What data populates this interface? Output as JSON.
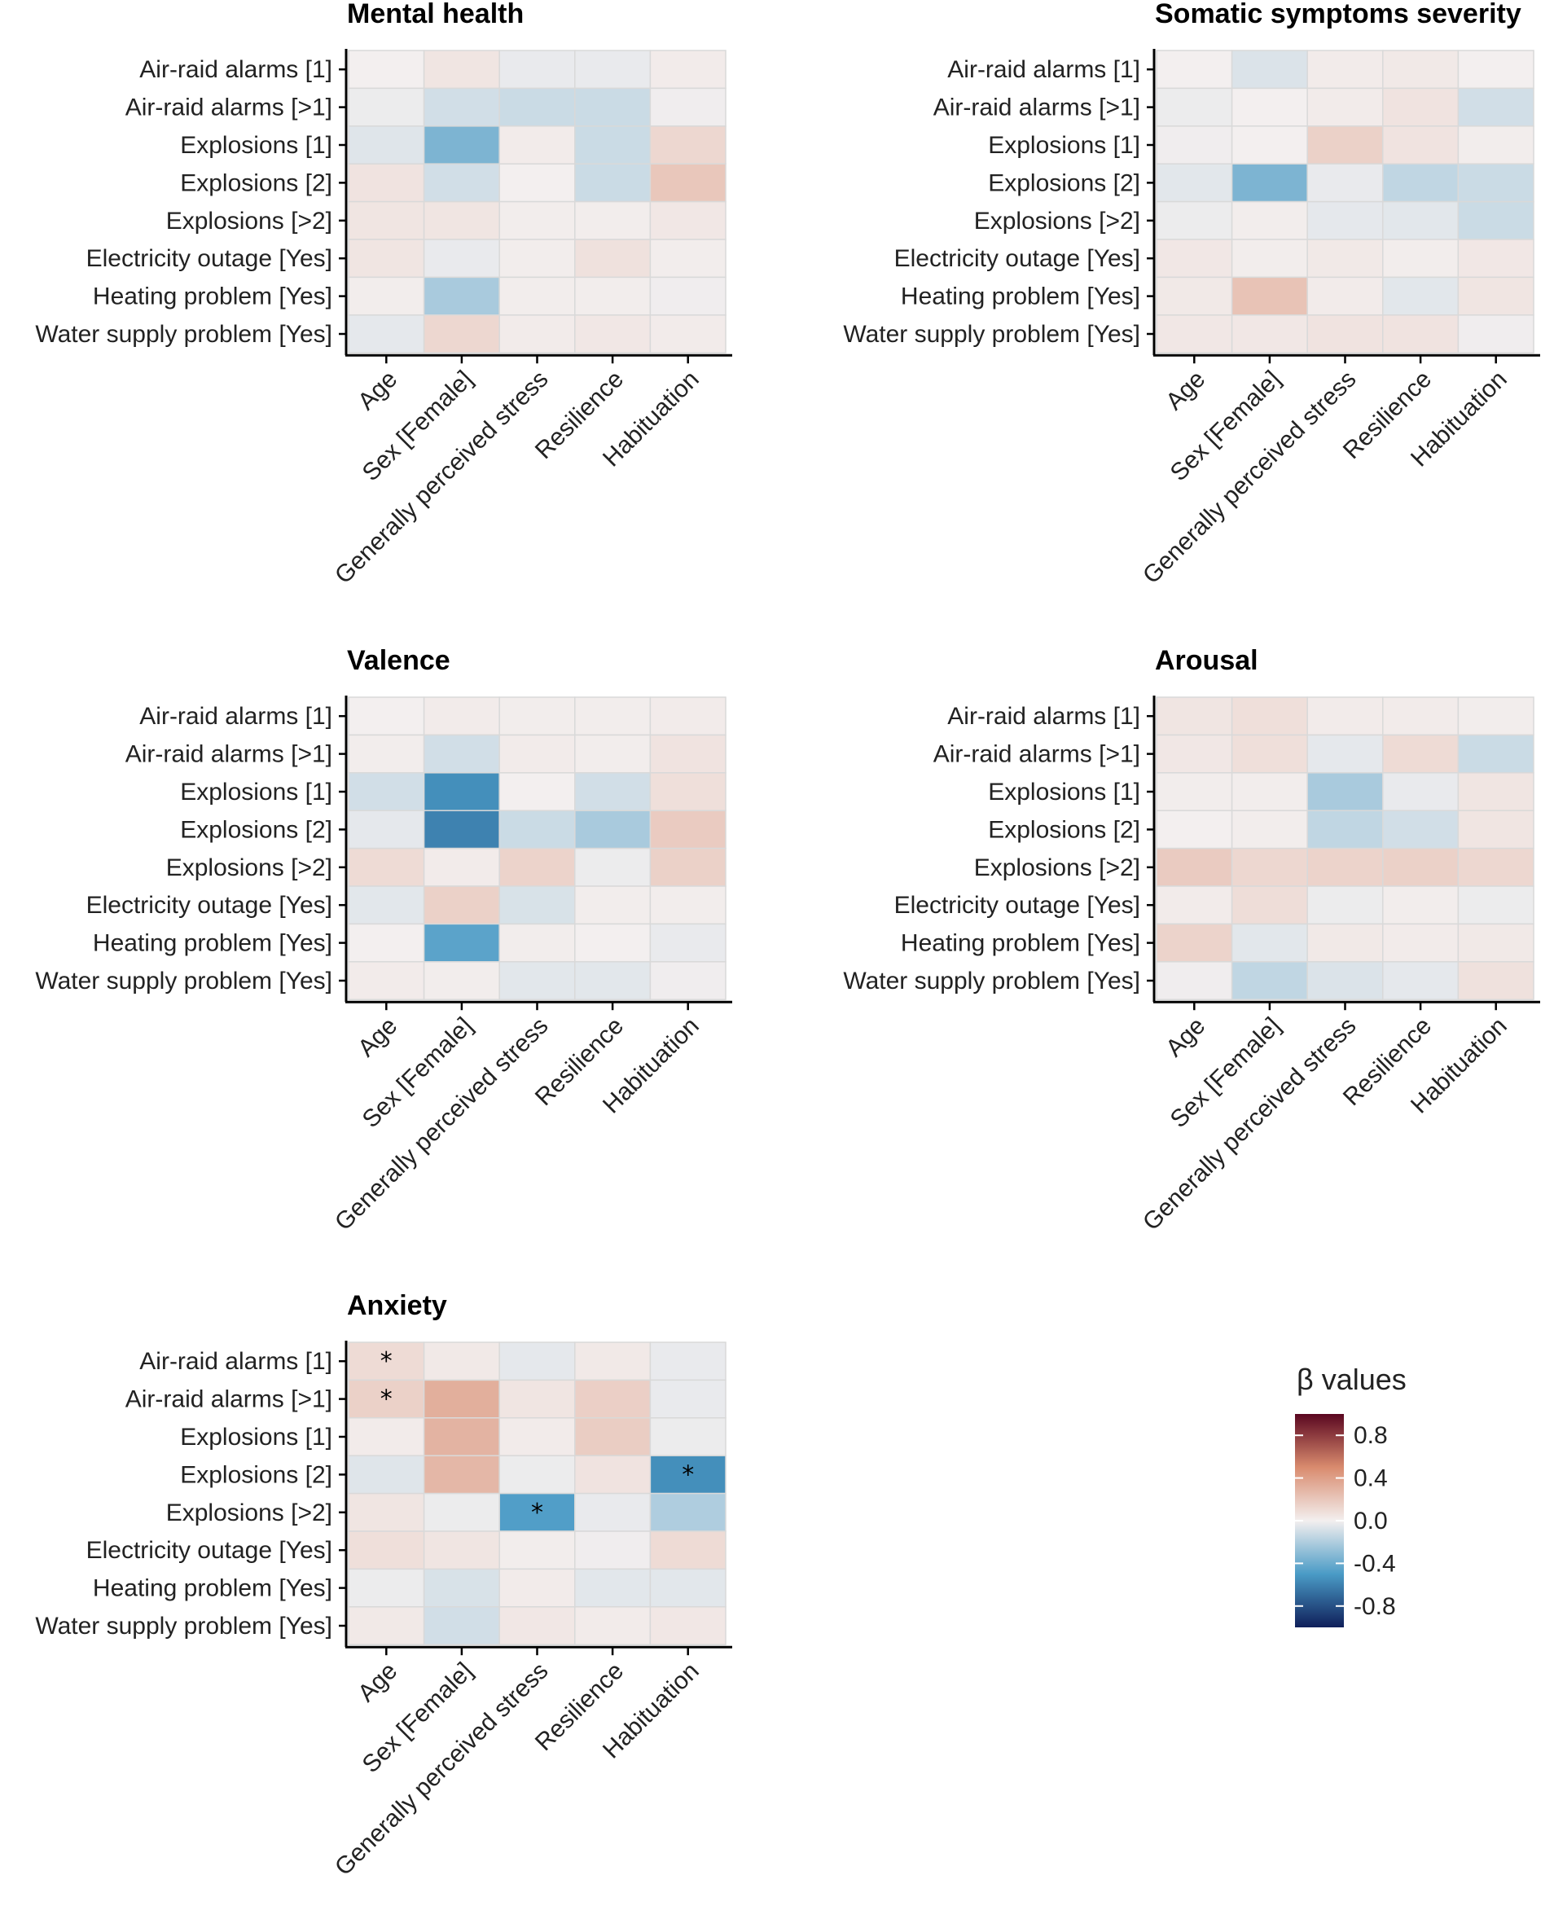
{
  "chart_data": {
    "type": "heatmap",
    "rows": [
      "Air-raid alarms [1]",
      "Air-raid alarms [>1]",
      "Explosions [1]",
      "Explosions [2]",
      "Explosions [>2]",
      "Electricity outage [Yes]",
      "Heating problem [Yes]",
      "Water supply problem [Yes]"
    ],
    "columns": [
      "Age",
      "Sex [Female]",
      "Generally perceived stress",
      "Resilience",
      "Habituation"
    ],
    "color_range": [
      -1.0,
      1.0
    ],
    "panels": [
      {
        "title": "Mental health",
        "values": [
          [
            0.0,
            0.05,
            -0.03,
            -0.03,
            0.02
          ],
          [
            -0.02,
            -0.1,
            -0.12,
            -0.12,
            -0.01
          ],
          [
            -0.06,
            -0.35,
            0.02,
            -0.12,
            0.12
          ],
          [
            0.06,
            -0.1,
            0.0,
            -0.12,
            0.2
          ],
          [
            0.05,
            0.05,
            0.01,
            0.01,
            0.04
          ],
          [
            0.05,
            -0.03,
            0.01,
            0.07,
            0.01
          ],
          [
            0.01,
            -0.22,
            0.01,
            0.01,
            -0.01
          ],
          [
            -0.04,
            0.12,
            0.02,
            0.04,
            0.02
          ]
        ],
        "significant": []
      },
      {
        "title": "Somatic symptoms severity",
        "values": [
          [
            0.0,
            -0.07,
            0.02,
            0.03,
            0.0
          ],
          [
            -0.02,
            0.0,
            0.02,
            0.06,
            -0.1
          ],
          [
            -0.01,
            0.0,
            0.15,
            0.06,
            0.01
          ],
          [
            -0.05,
            -0.35,
            -0.03,
            -0.15,
            -0.12
          ],
          [
            -0.02,
            0.01,
            -0.04,
            -0.05,
            -0.12
          ],
          [
            0.04,
            0.01,
            0.03,
            0.01,
            0.04
          ],
          [
            0.03,
            0.22,
            0.02,
            -0.05,
            0.05
          ],
          [
            0.04,
            0.04,
            0.06,
            0.06,
            -0.01
          ]
        ],
        "significant": []
      },
      {
        "title": "Valence",
        "values": [
          [
            0.0,
            0.02,
            0.01,
            0.01,
            0.02
          ],
          [
            0.01,
            -0.1,
            0.02,
            0.01,
            0.06
          ],
          [
            -0.1,
            -0.55,
            0.0,
            -0.1,
            0.08
          ],
          [
            -0.04,
            -0.6,
            -0.12,
            -0.22,
            0.18
          ],
          [
            0.1,
            0.02,
            0.14,
            -0.02,
            0.15
          ],
          [
            -0.05,
            0.15,
            -0.08,
            0.01,
            0.01
          ],
          [
            0.0,
            -0.45,
            0.01,
            0.0,
            -0.03
          ],
          [
            0.02,
            0.01,
            -0.05,
            -0.05,
            -0.01
          ]
        ],
        "significant": []
      },
      {
        "title": "Arousal",
        "values": [
          [
            0.05,
            0.08,
            0.02,
            0.02,
            0.01
          ],
          [
            0.04,
            0.08,
            -0.04,
            0.1,
            -0.12
          ],
          [
            0.01,
            0.01,
            -0.22,
            -0.03,
            0.05
          ],
          [
            0.0,
            0.01,
            -0.15,
            -0.1,
            0.05
          ],
          [
            0.18,
            0.12,
            0.14,
            0.15,
            0.12
          ],
          [
            0.02,
            0.09,
            -0.02,
            0.01,
            -0.02
          ],
          [
            0.14,
            -0.05,
            0.03,
            0.02,
            0.03
          ],
          [
            -0.01,
            -0.15,
            -0.07,
            -0.04,
            0.07
          ]
        ],
        "significant": []
      },
      {
        "title": "Anxiety",
        "values": [
          [
            0.1,
            0.03,
            -0.04,
            0.03,
            -0.03
          ],
          [
            0.15,
            0.32,
            0.05,
            0.16,
            -0.03
          ],
          [
            0.02,
            0.3,
            0.02,
            0.17,
            -0.02
          ],
          [
            -0.06,
            0.28,
            -0.02,
            0.06,
            -0.55
          ],
          [
            0.05,
            -0.02,
            -0.48,
            -0.03,
            -0.2
          ],
          [
            0.08,
            0.05,
            0.01,
            -0.01,
            0.1
          ],
          [
            -0.02,
            -0.08,
            0.02,
            -0.05,
            -0.05
          ],
          [
            0.03,
            -0.1,
            0.04,
            0.02,
            0.04
          ]
        ],
        "significant": [
          [
            0,
            0
          ],
          [
            1,
            0
          ],
          [
            3,
            4
          ],
          [
            4,
            2
          ]
        ]
      }
    ],
    "legend": {
      "title": "β values",
      "ticks": [
        0.8,
        0.4,
        0.0,
        -0.4,
        -0.8
      ],
      "tick_labels": [
        "0.8",
        "0.4",
        "0.0",
        "-0.4",
        "-0.8"
      ]
    },
    "significance_marker": "*"
  }
}
